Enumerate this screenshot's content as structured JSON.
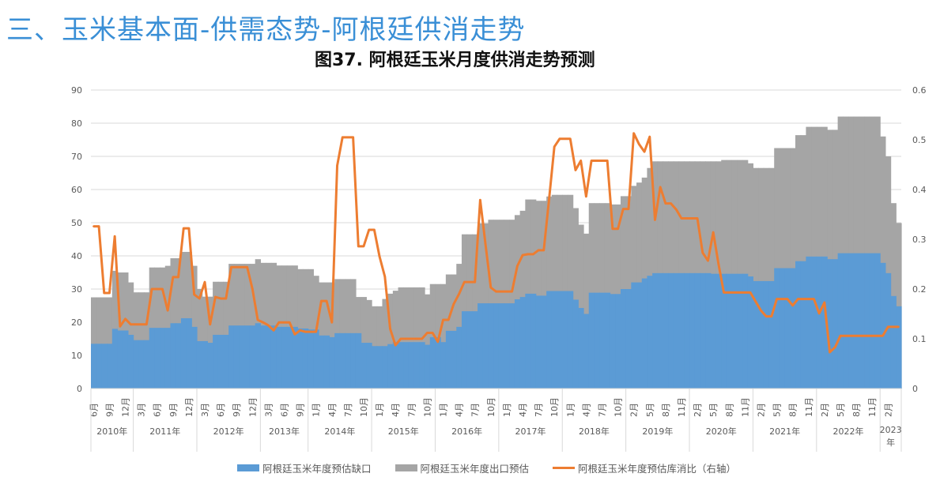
{
  "header": {
    "section_title": "三、玉米基本面-供需态势-阿根廷供消走势",
    "chart_title": "图37. 阿根廷玉米月度供消走势预测"
  },
  "colors": {
    "gap": "#5b9bd5",
    "export": "#a5a5a5",
    "ratio": "#ed7d31",
    "title": "#3a8fd6"
  },
  "chart_data": {
    "type": "area",
    "title": "图37. 阿根廷玉米月度供消走势预测",
    "left_axis": {
      "ylim": [
        0,
        90
      ],
      "ticks": [
        "0",
        "10",
        "20",
        "30",
        "40",
        "50",
        "60",
        "70",
        "80",
        "90"
      ]
    },
    "right_axis": {
      "ylim": [
        0,
        0.6
      ],
      "ticks": [
        "0",
        "0.1",
        "0.2",
        "0.3",
        "0.4",
        "0.5",
        "0.6"
      ]
    },
    "grid": true,
    "legend_position": "bottom",
    "x_tick_labels": [
      "6月",
      "9月",
      "12月",
      "3月",
      "6月",
      "9月",
      "12月",
      "3月",
      "6月",
      "9月",
      "12月",
      "3月",
      "6月",
      "9月",
      "1月",
      "4月",
      "7月",
      "10月",
      "1月",
      "4月",
      "7月",
      "10月",
      "1月",
      "4月",
      "7月",
      "10月",
      "1月",
      "4月",
      "7月",
      "10月",
      "1月",
      "4月",
      "7月",
      "10月",
      "2月",
      "5月",
      "8月",
      "11月",
      "2月",
      "5月",
      "8月",
      "11月",
      "2月",
      "5月",
      "8月",
      "11月",
      "2月",
      "5月",
      "8月",
      "11月",
      "2月"
    ],
    "year_groups": [
      {
        "label": "2010年",
        "ticks": 3
      },
      {
        "label": "2011年",
        "ticks": 4
      },
      {
        "label": "2012年",
        "ticks": 4
      },
      {
        "label": "2013年",
        "ticks": 3
      },
      {
        "label": "2014年",
        "ticks": 4
      },
      {
        "label": "2015年",
        "ticks": 4
      },
      {
        "label": "2016年",
        "ticks": 4
      },
      {
        "label": "2017年",
        "ticks": 4
      },
      {
        "label": "2018年",
        "ticks": 4
      },
      {
        "label": "2019年",
        "ticks": 4
      },
      {
        "label": "2020年",
        "ticks": 4
      },
      {
        "label": "2021年",
        "ticks": 4
      },
      {
        "label": "2022年",
        "ticks": 4
      },
      {
        "label": "2023年",
        "ticks": 1
      }
    ],
    "series": [
      {
        "name": "阿根廷玉米年度预估缺口",
        "type": "area",
        "axis": "left",
        "values": [
          13.5,
          13.5,
          13.5,
          13.5,
          18,
          17.5,
          17.5,
          16.2,
          14.6,
          14.6,
          14.6,
          18.3,
          18.3,
          18.3,
          18.3,
          19.7,
          19.7,
          21.2,
          21.2,
          18.6,
          14.3,
          14.3,
          13.8,
          16.2,
          16.2,
          16.2,
          19,
          19,
          19,
          19,
          19,
          19.7,
          19,
          19,
          19,
          18.6,
          18.6,
          18.6,
          18.6,
          18.1,
          18.1,
          17.8,
          17.8,
          16,
          16,
          15.5,
          16.7,
          16.7,
          16.7,
          16.7,
          16.7,
          13.8,
          13.8,
          12.8,
          12.8,
          12.8,
          13.4,
          14,
          14,
          14,
          14,
          14,
          14,
          13.2,
          15.5,
          15.5,
          14,
          17.4,
          17.4,
          18.6,
          23.3,
          23.3,
          23.3,
          25.7,
          25.7,
          25.7,
          25.7,
          25.7,
          25.7,
          25.7,
          26.9,
          27.6,
          28.6,
          28.6,
          28,
          28,
          29.4,
          29.4,
          29.4,
          29.4,
          29.4,
          26.8,
          24.3,
          22.5,
          28.9,
          28.9,
          28.9,
          28.9,
          28.5,
          28.5,
          30,
          30,
          32,
          32,
          33.2,
          34,
          34.8,
          34.8,
          34.8,
          34.8,
          34.8,
          34.8,
          34.8,
          34.8,
          34.8,
          34.8,
          34.8,
          34.6,
          34.6,
          34.6,
          34.6,
          34.6,
          34.6,
          34.6,
          33.8,
          32.4,
          32.4,
          32.4,
          32.4,
          36.3,
          36.3,
          36.3,
          36.3,
          38.4,
          38.4,
          39.8,
          39.8,
          39.8,
          39.8,
          39,
          39,
          40.8,
          40.8,
          40.8,
          40.8,
          40.8,
          40.8,
          40.8,
          40.8,
          37.9,
          34.8,
          27.9,
          24.8
        ]
      },
      {
        "name": "阿根廷玉米年度出口预估",
        "type": "area",
        "axis": "left",
        "values": [
          27.5,
          27.5,
          27.5,
          27.5,
          35.5,
          35,
          35,
          32,
          29,
          29,
          29,
          36.5,
          36.5,
          36.5,
          37,
          39.3,
          39.3,
          41.2,
          41.2,
          37,
          30,
          27.7,
          27.7,
          32.2,
          32.2,
          32.2,
          37.6,
          37.6,
          37.6,
          37.6,
          37.6,
          39,
          37.9,
          37.9,
          37.9,
          37.1,
          37.1,
          37.1,
          37.1,
          36,
          36,
          36,
          34,
          32,
          32,
          32,
          33,
          33,
          33,
          33,
          27.6,
          27.6,
          26.7,
          24.8,
          24.8,
          27,
          28.6,
          29.5,
          30.5,
          30.5,
          30.5,
          30.5,
          30.5,
          28.4,
          31.5,
          31.5,
          31.5,
          34.4,
          34.4,
          37.6,
          46.5,
          46.5,
          46.5,
          49.8,
          49.8,
          50.9,
          50.9,
          50.9,
          50.9,
          50.9,
          52.3,
          53.6,
          57,
          57,
          56.6,
          56.6,
          57.9,
          58.4,
          58.4,
          58.4,
          58.4,
          54.4,
          49.4,
          46.7,
          55.9,
          55.9,
          55.9,
          55.9,
          55.5,
          55.5,
          58,
          58,
          61.1,
          62.1,
          63.6,
          66.5,
          68.5,
          68.5,
          68.5,
          68.5,
          68.5,
          68.5,
          68.5,
          68.5,
          68.5,
          68.5,
          68.5,
          68.5,
          68.5,
          68.9,
          68.9,
          68.9,
          68.9,
          68.9,
          67.9,
          66.5,
          66.5,
          66.5,
          66.5,
          72.5,
          72.5,
          72.5,
          72.5,
          76.4,
          76.4,
          78.9,
          78.9,
          78.9,
          78.9,
          78,
          78,
          82,
          82,
          82,
          82,
          82,
          82,
          82,
          82,
          76,
          70,
          55.9,
          49.9
        ]
      },
      {
        "name": "阿根廷玉米年度预估库消比（右轴）",
        "type": "line",
        "axis": "right",
        "values": [
          0.326,
          0.326,
          0.192,
          0.192,
          0.306,
          0.125,
          0.14,
          0.129,
          0.129,
          0.129,
          0.129,
          0.2,
          0.2,
          0.2,
          0.157,
          0.224,
          0.224,
          0.322,
          0.322,
          0.189,
          0.181,
          0.214,
          0.129,
          0.184,
          0.181,
          0.181,
          0.244,
          0.244,
          0.244,
          0.244,
          0.2,
          0.138,
          0.133,
          0.127,
          0.117,
          0.133,
          0.133,
          0.133,
          0.109,
          0.117,
          0.114,
          0.114,
          0.114,
          0.176,
          0.176,
          0.133,
          0.448,
          0.505,
          0.505,
          0.505,
          0.286,
          0.286,
          0.319,
          0.319,
          0.265,
          0.225,
          0.12,
          0.087,
          0.1,
          0.1,
          0.1,
          0.1,
          0.1,
          0.112,
          0.112,
          0.094,
          0.138,
          0.138,
          0.17,
          0.19,
          0.214,
          0.214,
          0.214,
          0.379,
          0.29,
          0.203,
          0.195,
          0.195,
          0.195,
          0.195,
          0.246,
          0.268,
          0.27,
          0.27,
          0.278,
          0.278,
          0.38,
          0.486,
          0.502,
          0.502,
          0.502,
          0.439,
          0.458,
          0.386,
          0.458,
          0.458,
          0.458,
          0.458,
          0.321,
          0.321,
          0.361,
          0.361,
          0.513,
          0.491,
          0.476,
          0.506,
          0.339,
          0.405,
          0.372,
          0.372,
          0.36,
          0.342,
          0.342,
          0.342,
          0.342,
          0.273,
          0.257,
          0.314,
          0.25,
          0.193,
          0.193,
          0.193,
          0.193,
          0.193,
          0.193,
          0.175,
          0.157,
          0.145,
          0.145,
          0.18,
          0.18,
          0.18,
          0.167,
          0.18,
          0.18,
          0.18,
          0.18,
          0.151,
          0.173,
          0.073,
          0.083,
          0.106,
          0.106,
          0.106,
          0.106,
          0.106,
          0.106,
          0.106,
          0.106,
          0.106,
          0.124,
          0.124,
          0.124
        ]
      }
    ]
  },
  "legend": {
    "gap_label": "阿根廷玉米年度预估缺口",
    "export_label": "阿根廷玉米年度出口预估",
    "ratio_label": "阿根廷玉米年度预估库消比（右轴）"
  }
}
